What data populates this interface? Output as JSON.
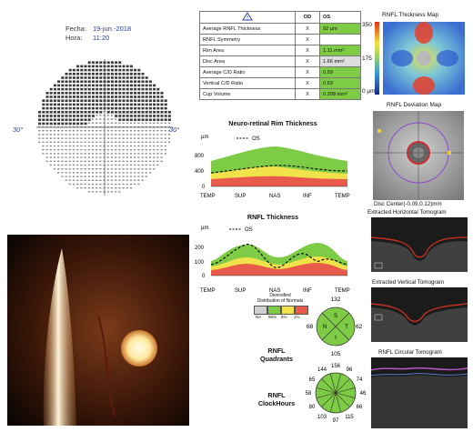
{
  "header": {
    "date_label": "Fecha:",
    "date_value": "19-jun.-2018",
    "time_label": "Hora:",
    "time_value": "11:20"
  },
  "visual_field": {
    "left_angle": "30°",
    "right_angle": "30°"
  },
  "param_table": {
    "warn_icon": "warning-triangle-icon",
    "col_od": "OD",
    "col_os": "OS",
    "rows": [
      {
        "label": "Average RNFL Thickness",
        "od": "X",
        "os": "92 µm",
        "color": "#7ecb45"
      },
      {
        "label": "RNFL Symmetry",
        "od": "X",
        "os": "",
        "color": ""
      },
      {
        "label": "Rim Area",
        "od": "X",
        "os": "1.11 mm²",
        "color": "#7ecb45"
      },
      {
        "label": "Disc Area",
        "od": "X",
        "os": "1.66 mm²",
        "color": "#dcdcdc"
      },
      {
        "label": "Average C/D Ratio",
        "od": "X",
        "os": "0.59",
        "color": "#7ecb45"
      },
      {
        "label": "Vertical C/D Ratio",
        "od": "X",
        "os": "0.63",
        "color": "#7ecb45"
      },
      {
        "label": "Cup Volume",
        "od": "X",
        "os": "0.208 mm³",
        "color": "#7ecb45"
      }
    ]
  },
  "thickness_map": {
    "title": "RNFL Thickness Map",
    "scale_max": "350",
    "scale_mid": "175",
    "scale_min": "0 µm"
  },
  "deviation_map": {
    "title": "RNFL Deviation Map",
    "disc_center": "Disc Center(-0.09,0.12)mm"
  },
  "rim_chart": {
    "title": "Neuro-retinal Rim Thickness",
    "unit": "µm",
    "legend": "OS",
    "y_ticks": [
      "800",
      "400",
      "0"
    ],
    "x_ticks": [
      "TEMP",
      "SUP",
      "NAS",
      "INF",
      "TEMP"
    ]
  },
  "rnfl_chart": {
    "title": "RNFL Thickness",
    "unit": "µm",
    "legend": "OS",
    "y_ticks": [
      "200",
      "100",
      "0"
    ],
    "x_ticks": [
      "TEMP",
      "SUP",
      "NAS",
      "INF",
      "TEMP"
    ]
  },
  "distribution": {
    "line1": "Diversified",
    "line2": "Distribution of Normals",
    "labels": [
      "NA",
      "95%",
      "5%",
      "1%"
    ]
  },
  "quadrants": {
    "title_line1": "RNFL",
    "title_line2": "Quadrants",
    "top": "132",
    "left": "68",
    "right": "62",
    "bottom": "105",
    "s": "S",
    "t": "T",
    "n": "N",
    "i": "I"
  },
  "clockhours": {
    "title_line1": "RNFL",
    "title_line2": "ClockHours",
    "values": [
      "156",
      "96",
      "74",
      "46",
      "66",
      "115",
      "97",
      "103",
      "80",
      "58",
      "65",
      "144"
    ]
  },
  "tomograms": {
    "horizontal": "Extracted Horizontal Tomogram",
    "vertical": "Extracted Vertical Tomogram",
    "circular": "RNFL Circular Tomogram"
  }
}
